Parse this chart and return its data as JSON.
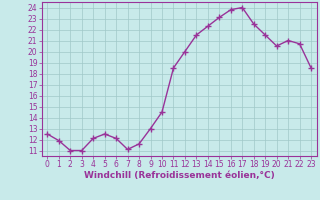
{
  "x": [
    0,
    1,
    2,
    3,
    4,
    5,
    6,
    7,
    8,
    9,
    10,
    11,
    12,
    13,
    14,
    15,
    16,
    17,
    18,
    19,
    20,
    21,
    22,
    23
  ],
  "y": [
    12.5,
    11.9,
    11.0,
    11.0,
    12.1,
    12.5,
    12.1,
    11.1,
    11.6,
    13.0,
    14.5,
    18.5,
    20.0,
    21.5,
    22.3,
    23.1,
    23.8,
    24.0,
    22.5,
    21.5,
    20.5,
    21.0,
    20.7,
    18.5
  ],
  "line_color": "#993399",
  "marker": "+",
  "markersize": 4,
  "linewidth": 1.0,
  "bg_color": "#c8eaea",
  "grid_color": "#a0c8c8",
  "xlabel": "Windchill (Refroidissement éolien,°C)",
  "xlabel_fontsize": 6.5,
  "ytick_labels": [
    "11",
    "12",
    "13",
    "14",
    "15",
    "16",
    "17",
    "18",
    "19",
    "20",
    "21",
    "22",
    "23",
    "24"
  ],
  "ytick_values": [
    11,
    12,
    13,
    14,
    15,
    16,
    17,
    18,
    19,
    20,
    21,
    22,
    23,
    24
  ],
  "xtick_labels": [
    "0",
    "1",
    "2",
    "3",
    "4",
    "5",
    "6",
    "7",
    "8",
    "9",
    "10",
    "11",
    "12",
    "13",
    "14",
    "15",
    "16",
    "17",
    "18",
    "19",
    "20",
    "21",
    "22",
    "23"
  ],
  "xlim": [
    -0.5,
    23.5
  ],
  "ylim": [
    10.5,
    24.5
  ],
  "tick_color": "#993399",
  "tick_fontsize": 5.5,
  "border_color": "#993399",
  "markeredgewidth": 1.0
}
